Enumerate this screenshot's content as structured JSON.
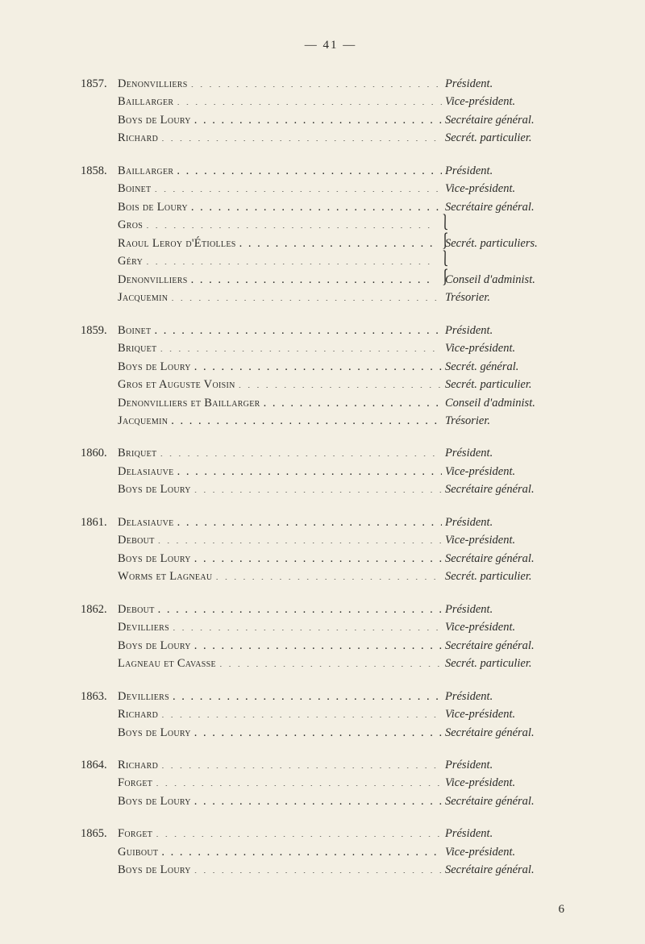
{
  "page_header": "— 41 —",
  "footer_page_number": "6",
  "entries": [
    {
      "year": "1857.",
      "rows": [
        {
          "name": "Denonvilliers",
          "role": "Président."
        },
        {
          "name": "Baillarger",
          "role": "Vice-président."
        },
        {
          "name": "Boys de Loury",
          "role": "Secrétaire général."
        },
        {
          "name": "Richard",
          "role": "Secrét. particulier."
        }
      ]
    },
    {
      "year": "1858.",
      "rows": [
        {
          "name": "Baillarger",
          "role": "Président."
        },
        {
          "name": "Boinet",
          "role": "Vice-président."
        },
        {
          "name": "Bois de Loury",
          "role": "Secrétaire général."
        },
        {
          "name": "Gros",
          "role": "",
          "brace": "top"
        },
        {
          "name": "Raoul Leroy d'Étiolles",
          "role": "Secrét. particuliers.",
          "brace": "bottom"
        },
        {
          "name": "Géry",
          "role": "",
          "brace": "top"
        },
        {
          "name": "Denonvilliers",
          "role": "Conseil d'administ.",
          "brace": "bottom"
        },
        {
          "name": "Jacquemin",
          "role": "Trésorier."
        }
      ]
    },
    {
      "year": "1859.",
      "rows": [
        {
          "name": "Boinet",
          "role": "Président."
        },
        {
          "name": "Briquet",
          "role": "Vice-président."
        },
        {
          "name": "Boys de Loury",
          "role": "Secrét. général."
        },
        {
          "name": "Gros et Auguste Voisin",
          "role": "Secrét. particulier."
        },
        {
          "name": "Denonvilliers et Baillarger",
          "role": "Conseil d'administ."
        },
        {
          "name": "Jacquemin",
          "role": "Trésorier."
        }
      ]
    },
    {
      "year": "1860.",
      "rows": [
        {
          "name": "Briquet",
          "role": "Président."
        },
        {
          "name": "Delasiauve",
          "role": "Vice-président."
        },
        {
          "name": "Boys de Loury",
          "role": "Secrétaire général."
        }
      ]
    },
    {
      "year": "1861.",
      "rows": [
        {
          "name": "Delasiauve",
          "role": "Président."
        },
        {
          "name": "Debout",
          "role": "Vice-président."
        },
        {
          "name": "Boys de Loury",
          "role": "Secrétaire général."
        },
        {
          "name": "Worms et Lagneau",
          "role": "Secrét. particulier."
        }
      ]
    },
    {
      "year": "1862.",
      "rows": [
        {
          "name": "Debout",
          "role": "Président."
        },
        {
          "name": "Devilliers",
          "role": "Vice-président."
        },
        {
          "name": "Boys de Loury",
          "role": "Secrétaire général."
        },
        {
          "name": "Lagneau et Cavasse",
          "role": "Secrét. particulier."
        }
      ]
    },
    {
      "year": "1863.",
      "rows": [
        {
          "name": "Devilliers",
          "role": "Président."
        },
        {
          "name": "Richard",
          "role": "Vice-président."
        },
        {
          "name": "Boys de Loury",
          "role": "Secrétaire général."
        }
      ]
    },
    {
      "year": "1864.",
      "rows": [
        {
          "name": "Richard",
          "role": "Président."
        },
        {
          "name": "Forget",
          "role": "Vice-président."
        },
        {
          "name": "Boys de Loury",
          "role": "Secrétaire général."
        }
      ]
    },
    {
      "year": "1865.",
      "rows": [
        {
          "name": "Forget",
          "role": "Président."
        },
        {
          "name": "Guibout",
          "role": "Vice-président."
        },
        {
          "name": "Boys de Loury",
          "role": "Secrétaire général."
        }
      ]
    }
  ]
}
